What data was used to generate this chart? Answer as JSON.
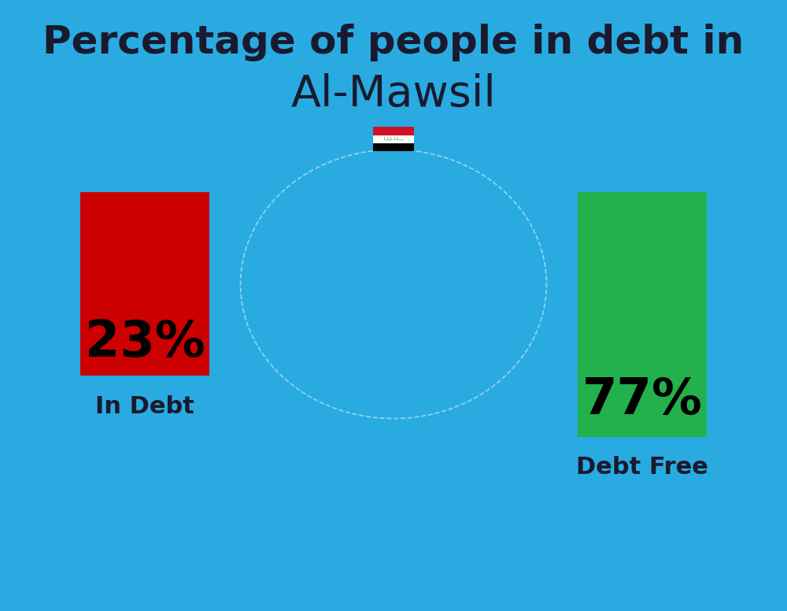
{
  "title_line1": "Percentage of people in debt in",
  "title_line2": "Al-Mawsil",
  "background_color": "#29ABE2",
  "bar1_value": 23,
  "bar1_label": "23%",
  "bar1_color": "#CC0000",
  "bar1_caption": "In Debt",
  "bar2_value": 77,
  "bar2_label": "77%",
  "bar2_color": "#22B14C",
  "bar2_caption": "Debt Free",
  "title_fontsize": 36,
  "subtitle_fontsize": 40,
  "bar_label_fontsize": 46,
  "caption_fontsize": 22,
  "title_color": "#1a1a2e",
  "caption_color": "#1a1a2e",
  "bar_label_color": "#000000",
  "flag_red": "#CE1126",
  "flag_white": "#FFFFFF",
  "flag_black": "#000000",
  "flag_green": "#007A3D"
}
